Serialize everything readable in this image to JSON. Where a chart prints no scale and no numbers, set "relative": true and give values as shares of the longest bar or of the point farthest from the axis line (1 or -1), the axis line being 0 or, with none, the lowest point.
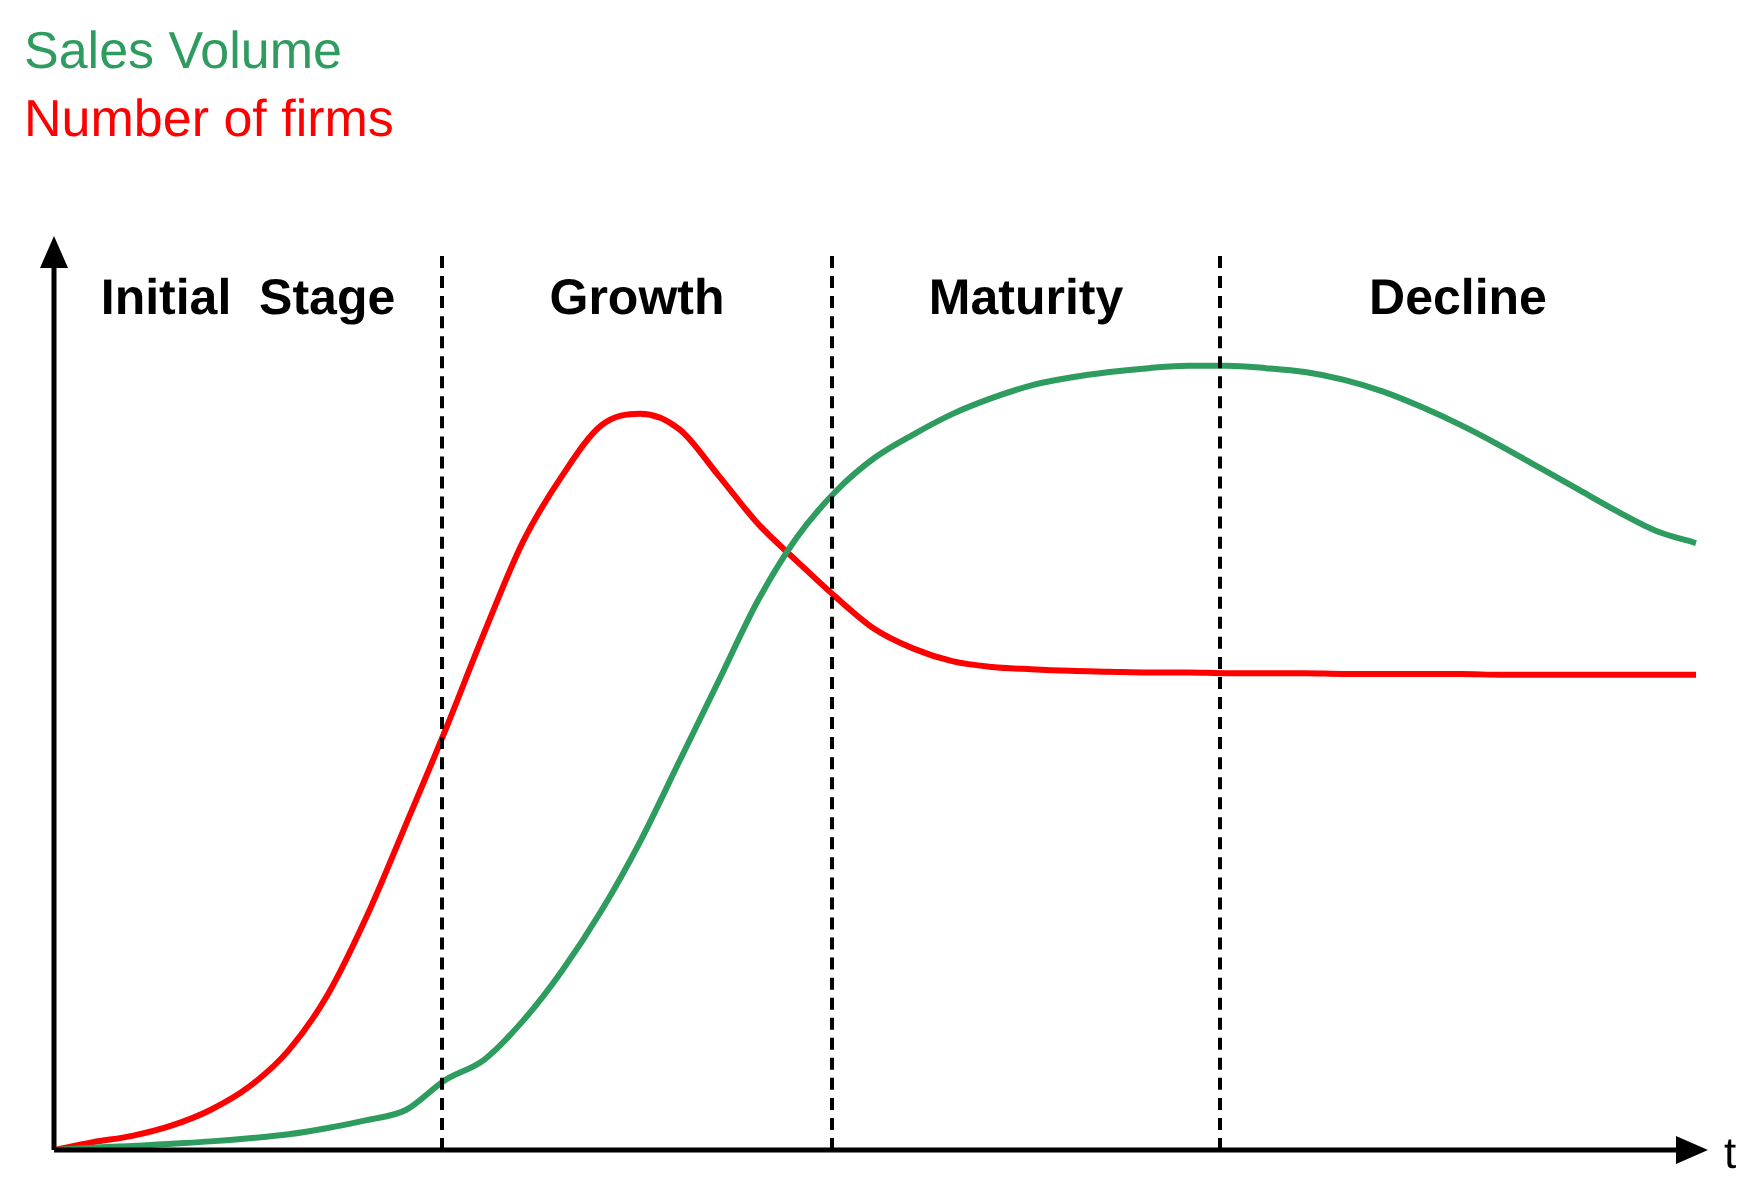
{
  "chart_data": {
    "type": "line",
    "relative": true,
    "xlabel": "t",
    "categories": [
      null,
      null,
      null,
      null,
      null,
      null,
      null,
      null,
      null,
      null,
      null,
      null,
      null,
      null,
      null,
      null,
      null,
      null,
      null,
      null,
      null,
      null,
      null,
      null,
      null,
      null,
      null,
      null,
      null,
      null,
      null,
      null,
      null,
      null,
      null,
      null,
      null,
      null,
      null,
      null,
      null,
      null,
      null
    ],
    "series": [
      {
        "name": "Sales Volume",
        "color": "#2e9b5f",
        "values": [
          0,
          0.003,
          0.005,
          0.008,
          0.011,
          0.015,
          0.02,
          0.028,
          0.038,
          0.051,
          0.089,
          0.115,
          0.165,
          0.229,
          0.305,
          0.394,
          0.496,
          0.598,
          0.7,
          0.781,
          0.84,
          0.883,
          0.913,
          0.939,
          0.959,
          0.975,
          0.985,
          0.992,
          0.997,
          1,
          1,
          0.997,
          0.992,
          0.982,
          0.967,
          0.947,
          0.924,
          0.898,
          0.87,
          0.842,
          0.814,
          0.789,
          0.774
        ]
      },
      {
        "name": "Number of firms",
        "color": "#ff0000",
        "values": [
          0,
          0.01,
          0.018,
          0.031,
          0.051,
          0.081,
          0.127,
          0.198,
          0.298,
          0.415,
          0.534,
          0.659,
          0.776,
          0.86,
          0.924,
          0.939,
          0.919,
          0.86,
          0.799,
          0.751,
          0.705,
          0.664,
          0.639,
          0.623,
          0.616,
          0.613,
          0.611,
          0.61,
          0.609,
          0.609,
          0.608,
          0.608,
          0.608,
          0.607,
          0.607,
          0.607,
          0.607,
          0.606,
          0.606,
          0.606,
          0.606,
          0.606,
          0.606
        ]
      }
    ],
    "annotations": [
      "Initial  Stage",
      "Growth",
      "Maturity",
      "Decline"
    ]
  }
}
